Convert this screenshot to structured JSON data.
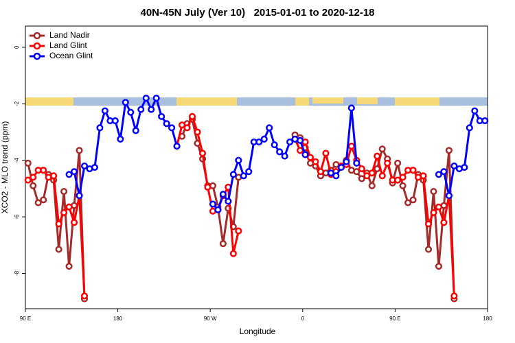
{
  "chart_data": {
    "type": "line",
    "title": "40N-45N July (Ver 10)   2015-01-01 to 2020-12-18",
    "x_label": "Longitude",
    "y_label": "XCO2 - MLO trend (ppm)",
    "xlim": [
      90,
      540
    ],
    "ylim": [
      -9.25,
      0.75
    ],
    "xticks": [
      {
        "value": 90,
        "label": "90 E"
      },
      {
        "value": 180,
        "label": "180"
      },
      {
        "value": 270,
        "label": "90 W"
      },
      {
        "value": 360,
        "label": "0"
      },
      {
        "value": 450,
        "label": "90 E"
      },
      {
        "value": 540,
        "label": "180"
      }
    ],
    "yticks": [
      0,
      -2,
      -4,
      -6,
      -8
    ],
    "legend": "top-left",
    "x": [
      92.5,
      97.5,
      102.5,
      107.5,
      112.5,
      117.5,
      122.5,
      127.5,
      132.5,
      137.5,
      142.5,
      147.5,
      152.5,
      157.5,
      162.5,
      167.5,
      172.5,
      177.5,
      182.5,
      187.5,
      192.5,
      197.5,
      202.5,
      207.5,
      212.5,
      217.5,
      222.5,
      227.5,
      232.5,
      237.5,
      242.5,
      247.5,
      252.5,
      257.5,
      262.5,
      267.5,
      272.5,
      277.5,
      282.5,
      287.5,
      292.5,
      297.5,
      302.5,
      307.5,
      312.5,
      317.5,
      322.5,
      327.5,
      332.5,
      337.5,
      342.5,
      347.5,
      352.5,
      357.5,
      362.5,
      367.5,
      372.5,
      377.5,
      382.5,
      387.5,
      392.5,
      397.5,
      402.5,
      407.5,
      412.5,
      417.5,
      422.5,
      427.5,
      432.5,
      437.5,
      442.5,
      447.5,
      452.5,
      457.5,
      462.5,
      467.5,
      472.5,
      477.5,
      482.5,
      487.5,
      492.5,
      497.5,
      502.5,
      507.5,
      512.5,
      517.5,
      522.5,
      527.5,
      532.5,
      537.5
    ],
    "series": [
      {
        "name": "Land Nadir",
        "color": "#a52a2a",
        "values": [
          -4.1,
          -4.9,
          -5.5,
          -5.4,
          -4.5,
          -4.7,
          -7.15,
          -5.1,
          -7.75,
          -5.6,
          -3.65,
          -8.9,
          null,
          null,
          null,
          null,
          null,
          null,
          null,
          null,
          null,
          null,
          null,
          null,
          null,
          null,
          null,
          null,
          null,
          null,
          -3.15,
          -2.7,
          -2.55,
          -3.4,
          -3.95,
          -4.9,
          -4.9,
          -5.65,
          -6.95,
          -5.7,
          -6.35,
          -4.6,
          null,
          null,
          null,
          null,
          null,
          null,
          null,
          null,
          null,
          null,
          -3.1,
          -3.2,
          -3.55,
          -4.1,
          -4.2,
          -4.55,
          -4.45,
          -4.35,
          -4.15,
          -4.2,
          -4.0,
          -4.35,
          -4.4,
          -4.65,
          -4.45,
          -4.9,
          -4.3,
          -3.6,
          -3.95,
          -4.8,
          -4.1,
          -4.9,
          -5.5,
          -5.4,
          -4.5,
          -4.7,
          -7.15,
          -5.1,
          -7.75,
          -5.6,
          -3.65,
          -8.9,
          null,
          null,
          null,
          null,
          null,
          null
        ]
      },
      {
        "name": "Land Glint",
        "color": "#ff0000",
        "values": [
          -4.7,
          -4.6,
          -4.35,
          -4.35,
          -4.6,
          -4.55,
          -6.25,
          -5.85,
          -5.65,
          -6.2,
          -5.25,
          -8.8,
          null,
          null,
          null,
          null,
          null,
          null,
          null,
          null,
          null,
          null,
          null,
          null,
          null,
          null,
          null,
          null,
          null,
          -3.5,
          -2.75,
          -2.85,
          -2.45,
          -3.0,
          -3.75,
          -4.95,
          -5.8,
          -5.75,
          -5.25,
          -4.95,
          -7.3,
          -6.5,
          null,
          null,
          null,
          null,
          null,
          null,
          null,
          null,
          null,
          null,
          -3.25,
          -3.65,
          -3.35,
          -3.9,
          -4.05,
          -4.4,
          -3.75,
          -4.5,
          -4.4,
          -4.2,
          -4.15,
          -3.5,
          -4.0,
          -4.3,
          -4.55,
          -4.45,
          -3.85,
          -4.55,
          -4.1,
          -4.7,
          -4.7,
          -4.6,
          -4.35,
          -4.35,
          -4.6,
          -4.55,
          -6.25,
          -5.85,
          -5.65,
          -6.2,
          -5.25,
          -8.8,
          null,
          null,
          null,
          null,
          null,
          null
        ]
      },
      {
        "name": "Ocean Glint",
        "color": "#0000ff",
        "values": [
          null,
          null,
          null,
          null,
          null,
          null,
          null,
          null,
          -4.5,
          -4.4,
          -5.25,
          -4.2,
          -4.3,
          -4.25,
          -2.85,
          -2.25,
          -2.6,
          -2.6,
          -3.25,
          -1.95,
          -2.3,
          -2.95,
          -2.2,
          -1.8,
          -2.2,
          -1.8,
          -2.45,
          -2.7,
          -2.85,
          -3.5,
          null,
          null,
          null,
          null,
          null,
          null,
          -5.55,
          -5.75,
          -5.2,
          -5.45,
          -4.5,
          -4.0,
          -4.55,
          -4.4,
          -3.35,
          -3.35,
          -3.25,
          -2.85,
          -3.45,
          -3.7,
          -3.85,
          -3.35,
          -3.25,
          -3.3,
          -3.8,
          null,
          null,
          null,
          null,
          -4.45,
          -4.55,
          -4.25,
          -4.05,
          -2.15,
          -4.1,
          null,
          null,
          null,
          null,
          null,
          null,
          null,
          null,
          null,
          null,
          null,
          null,
          null,
          null,
          null,
          -4.5,
          -4.4,
          -5.25,
          -4.2,
          -4.3,
          -4.25,
          -2.85,
          -2.25,
          -2.6,
          -2.6
        ]
      }
    ]
  }
}
